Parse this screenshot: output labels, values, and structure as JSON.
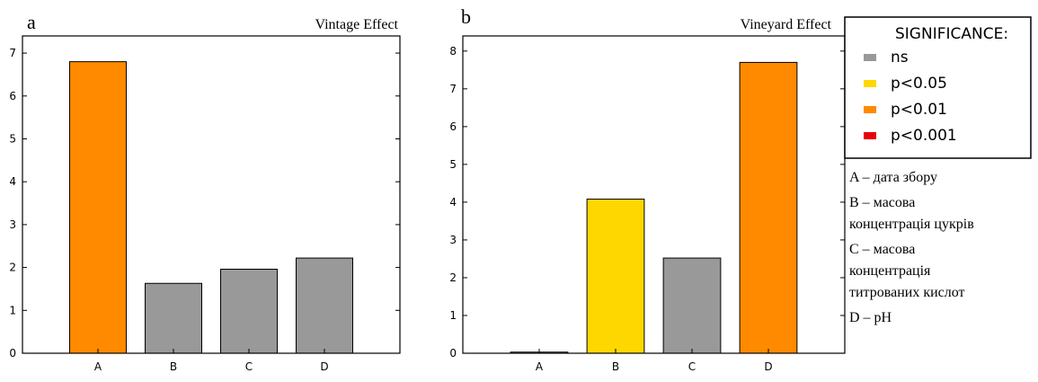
{
  "chart_data": [
    {
      "type": "bar",
      "panel_label": "a",
      "title": "Vintage Effect",
      "categories": [
        "A",
        "B",
        "C",
        "D"
      ],
      "values": [
        6.8,
        1.63,
        1.96,
        2.22
      ],
      "significance": [
        "p<0.01",
        "ns",
        "ns",
        "ns"
      ],
      "yticks": [
        0,
        1,
        2,
        3,
        4,
        5,
        6,
        7
      ],
      "ylim": [
        0,
        7.4
      ],
      "grid": false
    },
    {
      "type": "bar",
      "panel_label": "b",
      "title": "Vineyard Effect",
      "categories": [
        "A",
        "B",
        "C",
        "D"
      ],
      "values": [
        0.03,
        4.08,
        2.52,
        7.7
      ],
      "significance": [
        "ns",
        "p<0.05",
        "ns",
        "p<0.01"
      ],
      "yticks": [
        0,
        1,
        2,
        3,
        4,
        5,
        6,
        7,
        8
      ],
      "ylim": [
        0,
        8.4
      ],
      "grid": false
    }
  ],
  "legend": {
    "title": "SIGNIFICANCE:",
    "placement": "top-right",
    "items": [
      {
        "label": "ns",
        "color": "#999999"
      },
      {
        "label": "p<0.05",
        "color": "#ffd700"
      },
      {
        "label": "p<0.01",
        "color": "#ff8a00"
      },
      {
        "label": "p<0.001",
        "color": "#e8000b"
      }
    ]
  },
  "notes": [
    {
      "key": "A",
      "lines": [
        "A – дата збору"
      ]
    },
    {
      "key": "B",
      "lines": [
        "B – масова",
        "концентрація цукрів"
      ]
    },
    {
      "key": "C",
      "lines": [
        "C – масова",
        "концентрація",
        "титрованих кислот"
      ]
    },
    {
      "key": "D",
      "lines": [
        "D – pH"
      ]
    }
  ]
}
